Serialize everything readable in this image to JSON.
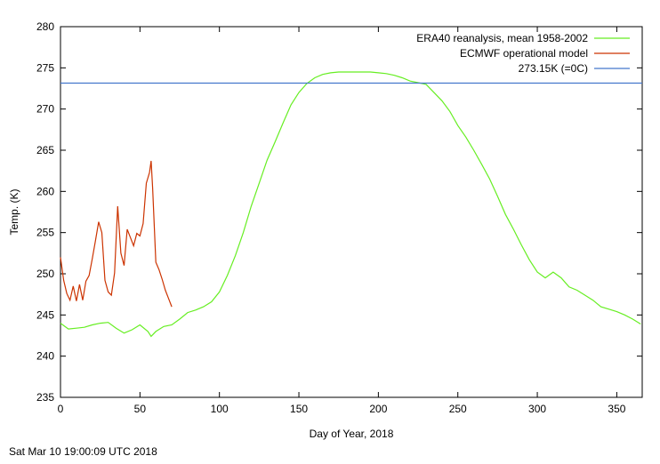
{
  "timestamp": "Sat Mar 10 19:00:09 UTC 2018",
  "chart_data": {
    "type": "line",
    "title": "",
    "xlabel": "Day of Year, 2018",
    "ylabel": "Temp. (K)",
    "xlim": [
      0,
      366
    ],
    "ylim": [
      235,
      280
    ],
    "xticks": [
      0,
      50,
      100,
      150,
      200,
      250,
      300,
      350
    ],
    "yticks": [
      235,
      240,
      245,
      250,
      255,
      260,
      265,
      270,
      275,
      280
    ],
    "grid": false,
    "legend_position": "top-right",
    "series": [
      {
        "name": "ERA40 reanalysis, mean 1958-2002",
        "color": "#66ee22",
        "x": [
          0,
          5,
          10,
          15,
          20,
          25,
          30,
          35,
          40,
          45,
          50,
          55,
          57,
          60,
          65,
          70,
          75,
          80,
          85,
          90,
          95,
          100,
          105,
          110,
          115,
          120,
          125,
          130,
          135,
          140,
          145,
          150,
          155,
          160,
          165,
          170,
          175,
          180,
          185,
          190,
          195,
          200,
          205,
          210,
          215,
          220,
          225,
          230,
          235,
          240,
          245,
          250,
          255,
          260,
          265,
          270,
          275,
          280,
          285,
          290,
          295,
          300,
          305,
          310,
          315,
          320,
          325,
          330,
          335,
          340,
          345,
          350,
          355,
          360,
          365
        ],
        "y": [
          244.0,
          243.3,
          243.4,
          243.5,
          243.8,
          244.0,
          244.1,
          243.4,
          242.8,
          243.2,
          243.8,
          243.0,
          242.4,
          243.0,
          243.6,
          243.8,
          244.5,
          245.3,
          245.6,
          246.0,
          246.6,
          247.8,
          249.8,
          252.2,
          255.0,
          258.2,
          261.0,
          263.8,
          266.0,
          268.3,
          270.5,
          272.0,
          273.1,
          273.8,
          274.2,
          274.4,
          274.5,
          274.5,
          274.5,
          274.5,
          274.5,
          274.4,
          274.3,
          274.1,
          273.8,
          273.4,
          273.2,
          273.0,
          272.0,
          271.0,
          269.7,
          268.0,
          266.6,
          265.0,
          263.3,
          261.5,
          259.4,
          257.2,
          255.4,
          253.5,
          251.7,
          250.2,
          249.5,
          250.2,
          249.5,
          248.4,
          248.0,
          247.4,
          246.8,
          246.0,
          245.7,
          245.4,
          245.0,
          244.5,
          243.9
        ]
      },
      {
        "name": "ECMWF operational model",
        "color": "#cc3300",
        "x": [
          0,
          2,
          4,
          6,
          8,
          10,
          12,
          14,
          16,
          18,
          20,
          22,
          24,
          26,
          28,
          30,
          32,
          34,
          36,
          38,
          40,
          42,
          44,
          46,
          48,
          50,
          52,
          54,
          56,
          57,
          58,
          60,
          62,
          64,
          66,
          68,
          70
        ],
        "y": [
          252.0,
          249.2,
          247.6,
          246.8,
          248.5,
          246.7,
          248.7,
          246.8,
          249.1,
          249.8,
          251.8,
          254.0,
          256.3,
          255.0,
          249.2,
          247.8,
          247.4,
          250.1,
          258.2,
          252.5,
          251.0,
          255.4,
          254.4,
          253.4,
          254.9,
          254.6,
          256.1,
          261.0,
          262.3,
          263.7,
          260.4,
          251.4,
          250.5,
          249.3,
          248.0,
          247.0,
          246.0
        ]
      },
      {
        "name": "273.15K (=0C)",
        "color": "#4477cc",
        "x": [
          0,
          366
        ],
        "y": [
          273.15,
          273.15
        ]
      }
    ]
  }
}
